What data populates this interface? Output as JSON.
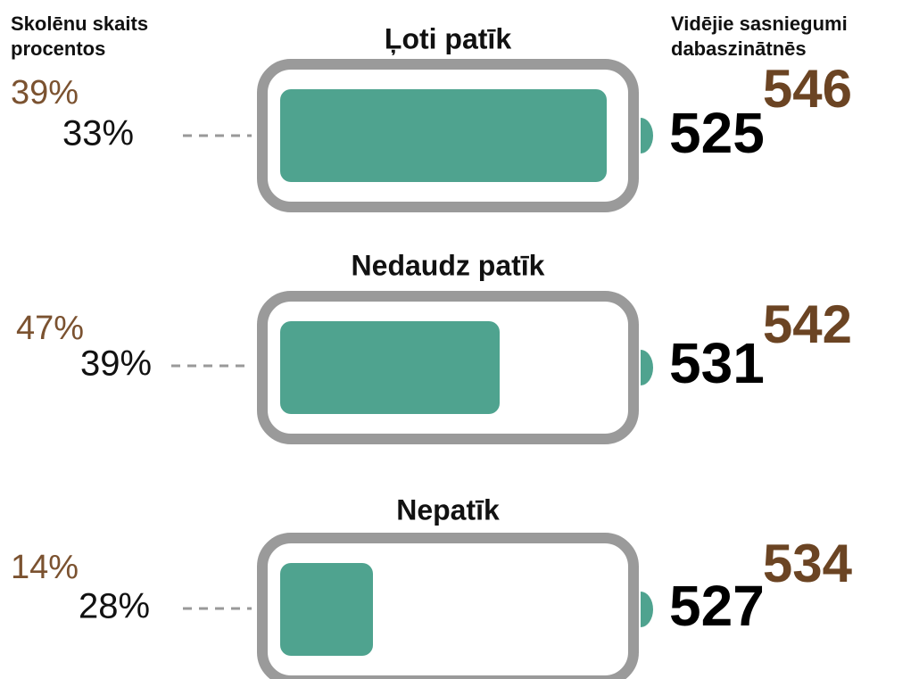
{
  "header": {
    "left": [
      "Skolēnu skaits",
      "procentos"
    ],
    "right": [
      "Vidējie sasniegumi",
      "dabaszinātnēs"
    ]
  },
  "groups": [
    {
      "label": "Ļoti patīk",
      "percent_brown": "39%",
      "percent_black": "33%",
      "score_brown": "546",
      "score_black": "525"
    },
    {
      "label": "Nedaudz patīk",
      "percent_brown": "47%",
      "percent_black": "39%",
      "score_brown": "542",
      "score_black": "531"
    },
    {
      "label": "Nepatīk",
      "percent_brown": "14%",
      "percent_black": "28%",
      "score_brown": "534",
      "score_black": "527"
    }
  ]
}
